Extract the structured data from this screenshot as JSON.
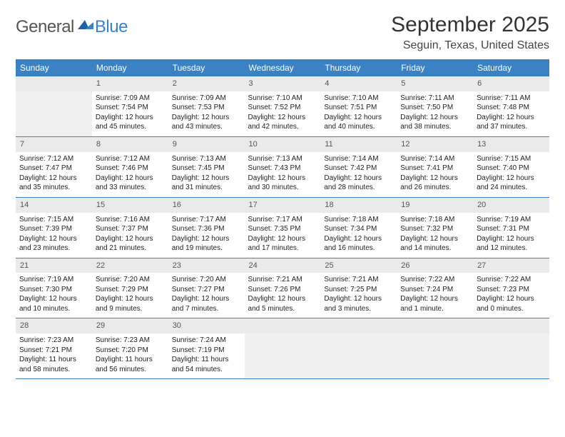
{
  "logo": {
    "text1": "General",
    "text2": "Blue",
    "color1": "#555555",
    "color2": "#3b82c4"
  },
  "title": "September 2025",
  "location": "Seguin, Texas, United States",
  "colors": {
    "header_bg": "#3b82c4",
    "header_text": "#ffffff",
    "daynum_bg": "#eaeaea",
    "daynum_text": "#555555",
    "body_text": "#222222",
    "rule": "#3b82c4",
    "empty_bg": "#f0f0f0"
  },
  "typography": {
    "title_fontsize": 30,
    "location_fontsize": 16,
    "dayheader_fontsize": 12,
    "cell_fontsize": 10
  },
  "day_headers": [
    "Sunday",
    "Monday",
    "Tuesday",
    "Wednesday",
    "Thursday",
    "Friday",
    "Saturday"
  ],
  "weeks": [
    [
      null,
      {
        "n": "1",
        "sr": "Sunrise: 7:09 AM",
        "ss": "Sunset: 7:54 PM",
        "dl": "Daylight: 12 hours and 45 minutes."
      },
      {
        "n": "2",
        "sr": "Sunrise: 7:09 AM",
        "ss": "Sunset: 7:53 PM",
        "dl": "Daylight: 12 hours and 43 minutes."
      },
      {
        "n": "3",
        "sr": "Sunrise: 7:10 AM",
        "ss": "Sunset: 7:52 PM",
        "dl": "Daylight: 12 hours and 42 minutes."
      },
      {
        "n": "4",
        "sr": "Sunrise: 7:10 AM",
        "ss": "Sunset: 7:51 PM",
        "dl": "Daylight: 12 hours and 40 minutes."
      },
      {
        "n": "5",
        "sr": "Sunrise: 7:11 AM",
        "ss": "Sunset: 7:50 PM",
        "dl": "Daylight: 12 hours and 38 minutes."
      },
      {
        "n": "6",
        "sr": "Sunrise: 7:11 AM",
        "ss": "Sunset: 7:48 PM",
        "dl": "Daylight: 12 hours and 37 minutes."
      }
    ],
    [
      {
        "n": "7",
        "sr": "Sunrise: 7:12 AM",
        "ss": "Sunset: 7:47 PM",
        "dl": "Daylight: 12 hours and 35 minutes."
      },
      {
        "n": "8",
        "sr": "Sunrise: 7:12 AM",
        "ss": "Sunset: 7:46 PM",
        "dl": "Daylight: 12 hours and 33 minutes."
      },
      {
        "n": "9",
        "sr": "Sunrise: 7:13 AM",
        "ss": "Sunset: 7:45 PM",
        "dl": "Daylight: 12 hours and 31 minutes."
      },
      {
        "n": "10",
        "sr": "Sunrise: 7:13 AM",
        "ss": "Sunset: 7:43 PM",
        "dl": "Daylight: 12 hours and 30 minutes."
      },
      {
        "n": "11",
        "sr": "Sunrise: 7:14 AM",
        "ss": "Sunset: 7:42 PM",
        "dl": "Daylight: 12 hours and 28 minutes."
      },
      {
        "n": "12",
        "sr": "Sunrise: 7:14 AM",
        "ss": "Sunset: 7:41 PM",
        "dl": "Daylight: 12 hours and 26 minutes."
      },
      {
        "n": "13",
        "sr": "Sunrise: 7:15 AM",
        "ss": "Sunset: 7:40 PM",
        "dl": "Daylight: 12 hours and 24 minutes."
      }
    ],
    [
      {
        "n": "14",
        "sr": "Sunrise: 7:15 AM",
        "ss": "Sunset: 7:39 PM",
        "dl": "Daylight: 12 hours and 23 minutes."
      },
      {
        "n": "15",
        "sr": "Sunrise: 7:16 AM",
        "ss": "Sunset: 7:37 PM",
        "dl": "Daylight: 12 hours and 21 minutes."
      },
      {
        "n": "16",
        "sr": "Sunrise: 7:17 AM",
        "ss": "Sunset: 7:36 PM",
        "dl": "Daylight: 12 hours and 19 minutes."
      },
      {
        "n": "17",
        "sr": "Sunrise: 7:17 AM",
        "ss": "Sunset: 7:35 PM",
        "dl": "Daylight: 12 hours and 17 minutes."
      },
      {
        "n": "18",
        "sr": "Sunrise: 7:18 AM",
        "ss": "Sunset: 7:34 PM",
        "dl": "Daylight: 12 hours and 16 minutes."
      },
      {
        "n": "19",
        "sr": "Sunrise: 7:18 AM",
        "ss": "Sunset: 7:32 PM",
        "dl": "Daylight: 12 hours and 14 minutes."
      },
      {
        "n": "20",
        "sr": "Sunrise: 7:19 AM",
        "ss": "Sunset: 7:31 PM",
        "dl": "Daylight: 12 hours and 12 minutes."
      }
    ],
    [
      {
        "n": "21",
        "sr": "Sunrise: 7:19 AM",
        "ss": "Sunset: 7:30 PM",
        "dl": "Daylight: 12 hours and 10 minutes."
      },
      {
        "n": "22",
        "sr": "Sunrise: 7:20 AM",
        "ss": "Sunset: 7:29 PM",
        "dl": "Daylight: 12 hours and 9 minutes."
      },
      {
        "n": "23",
        "sr": "Sunrise: 7:20 AM",
        "ss": "Sunset: 7:27 PM",
        "dl": "Daylight: 12 hours and 7 minutes."
      },
      {
        "n": "24",
        "sr": "Sunrise: 7:21 AM",
        "ss": "Sunset: 7:26 PM",
        "dl": "Daylight: 12 hours and 5 minutes."
      },
      {
        "n": "25",
        "sr": "Sunrise: 7:21 AM",
        "ss": "Sunset: 7:25 PM",
        "dl": "Daylight: 12 hours and 3 minutes."
      },
      {
        "n": "26",
        "sr": "Sunrise: 7:22 AM",
        "ss": "Sunset: 7:24 PM",
        "dl": "Daylight: 12 hours and 1 minute."
      },
      {
        "n": "27",
        "sr": "Sunrise: 7:22 AM",
        "ss": "Sunset: 7:23 PM",
        "dl": "Daylight: 12 hours and 0 minutes."
      }
    ],
    [
      {
        "n": "28",
        "sr": "Sunrise: 7:23 AM",
        "ss": "Sunset: 7:21 PM",
        "dl": "Daylight: 11 hours and 58 minutes."
      },
      {
        "n": "29",
        "sr": "Sunrise: 7:23 AM",
        "ss": "Sunset: 7:20 PM",
        "dl": "Daylight: 11 hours and 56 minutes."
      },
      {
        "n": "30",
        "sr": "Sunrise: 7:24 AM",
        "ss": "Sunset: 7:19 PM",
        "dl": "Daylight: 11 hours and 54 minutes."
      },
      null,
      null,
      null,
      null
    ]
  ]
}
